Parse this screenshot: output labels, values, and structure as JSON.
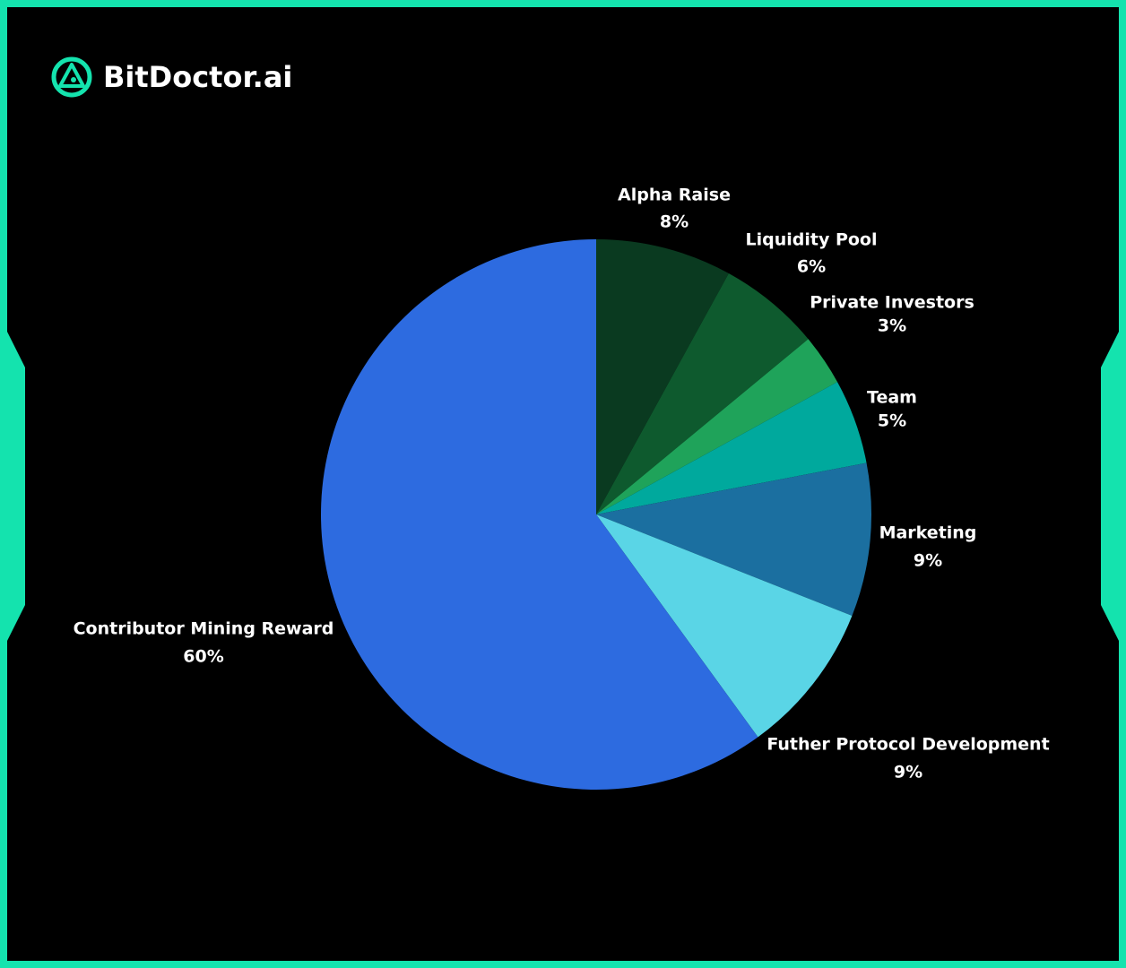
{
  "brand": "BitDoctor.ai",
  "chart_data": {
    "type": "pie",
    "categories": [
      "Alpha Raise",
      "Liquidity Pool",
      "Private Investors",
      "Team",
      "Marketing",
      "Futher Protocol Development",
      "Contributor Mining Reward"
    ],
    "values": [
      8,
      6,
      3,
      5,
      9,
      9,
      60
    ],
    "value_labels": [
      "8%",
      "6%",
      "3%",
      "5%",
      "9%",
      "9%",
      "60%"
    ],
    "colors": [
      "#0a3a20",
      "#0e5a2e",
      "#1fa35a",
      "#00a99d",
      "#1b6fa0",
      "#5ad5e6",
      "#2d6be0"
    ]
  }
}
